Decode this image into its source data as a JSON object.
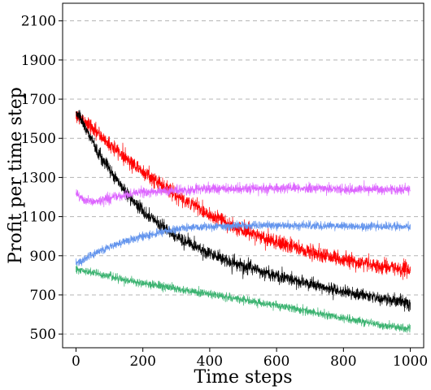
{
  "chart_data": {
    "type": "line",
    "xlabel": "Time steps",
    "ylabel": "Profit per time step",
    "xlim": [
      -40,
      1040
    ],
    "ylim": [
      430,
      2190
    ],
    "xticks": [
      0,
      200,
      400,
      600,
      800,
      1000
    ],
    "yticks": [
      500,
      700,
      900,
      1100,
      1300,
      1500,
      1700,
      1900,
      2100
    ],
    "grid": "horizontal dashed",
    "legend": "none",
    "series": [
      {
        "color": "#ff0000",
        "noise": 35,
        "x": [
          0,
          50,
          100,
          150,
          200,
          250,
          300,
          350,
          400,
          450,
          500,
          550,
          600,
          650,
          700,
          750,
          800,
          850,
          900,
          950,
          1000
        ],
        "y": [
          1620,
          1550,
          1470,
          1400,
          1330,
          1270,
          1210,
          1160,
          1110,
          1070,
          1030,
          1000,
          970,
          945,
          920,
          900,
          880,
          865,
          850,
          835,
          825
        ]
      },
      {
        "color": "#000000",
        "noise": 30,
        "x": [
          0,
          25,
          50,
          75,
          100,
          150,
          200,
          250,
          300,
          350,
          400,
          450,
          500,
          550,
          600,
          650,
          700,
          750,
          800,
          850,
          900,
          950,
          1000
        ],
        "y": [
          1640,
          1560,
          1480,
          1410,
          1340,
          1220,
          1130,
          1060,
          1000,
          950,
          910,
          880,
          850,
          820,
          800,
          775,
          755,
          735,
          715,
          700,
          685,
          670,
          655
        ]
      },
      {
        "color": "#dd66ff",
        "noise": 22,
        "x": [
          0,
          25,
          50,
          100,
          150,
          200,
          300,
          400,
          500,
          600,
          700,
          800,
          900,
          1000
        ],
        "y": [
          1220,
          1180,
          1175,
          1195,
          1210,
          1225,
          1235,
          1240,
          1245,
          1245,
          1245,
          1240,
          1240,
          1235
        ]
      },
      {
        "color": "#6495ed",
        "noise": 18,
        "x": [
          0,
          50,
          100,
          150,
          200,
          250,
          300,
          350,
          400,
          500,
          600,
          700,
          800,
          900,
          1000
        ],
        "y": [
          860,
          905,
          945,
          975,
          1000,
          1020,
          1035,
          1045,
          1050,
          1055,
          1055,
          1055,
          1052,
          1050,
          1048
        ]
      },
      {
        "color": "#3cb371",
        "noise": 18,
        "x": [
          0,
          50,
          100,
          150,
          200,
          250,
          300,
          350,
          400,
          450,
          500,
          550,
          600,
          650,
          700,
          750,
          800,
          850,
          900,
          950,
          1000
        ],
        "y": [
          830,
          815,
          795,
          775,
          760,
          745,
          730,
          718,
          705,
          690,
          676,
          660,
          645,
          630,
          614,
          598,
          582,
          566,
          550,
          537,
          525
        ]
      }
    ]
  }
}
